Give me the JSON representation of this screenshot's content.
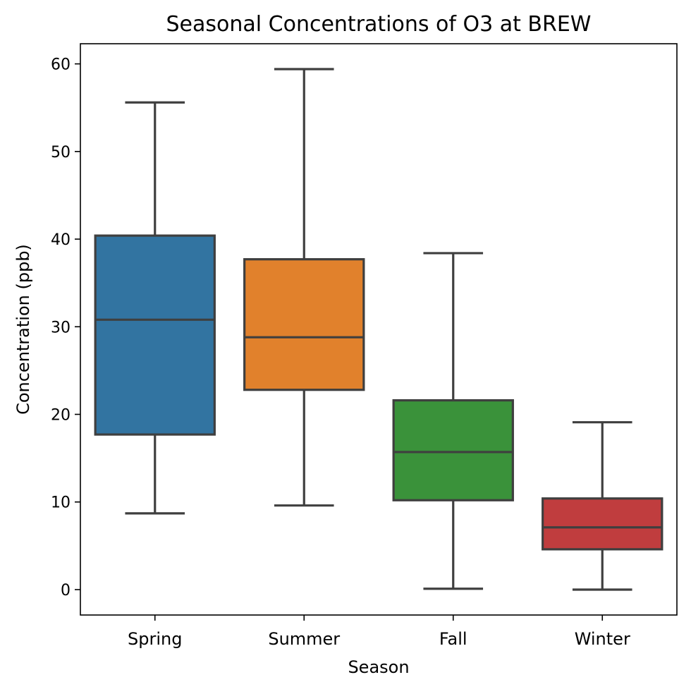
{
  "chart_data": {
    "type": "box",
    "title": "Seasonal Concentrations of O3 at BREW",
    "xlabel": "Season",
    "ylabel": "Concentration (ppb)",
    "ylim": [
      -2.9,
      62.3
    ],
    "yticks": [
      0,
      10,
      20,
      30,
      40,
      50,
      60
    ],
    "grid": false,
    "categories": [
      "Spring",
      "Summer",
      "Fall",
      "Winter"
    ],
    "boxes": [
      {
        "category": "Spring",
        "whisker_low": 8.7,
        "q1": 17.7,
        "median": 30.8,
        "q3": 40.4,
        "whisker_high": 55.6,
        "color": "#3274a1"
      },
      {
        "category": "Summer",
        "whisker_low": 9.6,
        "q1": 22.8,
        "median": 28.8,
        "q3": 37.7,
        "whisker_high": 59.4,
        "color": "#e1812c"
      },
      {
        "category": "Fall",
        "whisker_low": 0.1,
        "q1": 10.2,
        "median": 15.7,
        "q3": 21.6,
        "whisker_high": 38.4,
        "color": "#3a923a"
      },
      {
        "category": "Winter",
        "whisker_low": 0.0,
        "q1": 4.6,
        "median": 7.1,
        "q3": 10.4,
        "whisker_high": 19.1,
        "color": "#c03d3e"
      }
    ],
    "line_color": "#3f3f3f"
  }
}
